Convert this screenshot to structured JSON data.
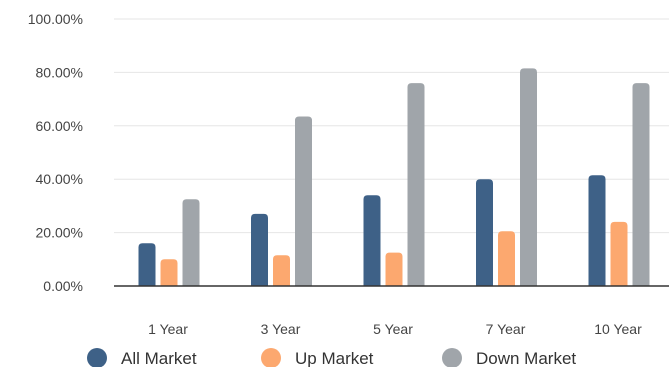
{
  "chart_data": {
    "type": "bar",
    "categories": [
      "1 Year",
      "3 Year",
      "5 Year",
      "7 Year",
      "10 Year"
    ],
    "series": [
      {
        "name": "All Market",
        "color": "#3e6187",
        "values": [
          16,
          27,
          34,
          40,
          41.5
        ]
      },
      {
        "name": "Up Market",
        "color": "#fca86f",
        "values": [
          10,
          11.5,
          12.5,
          20.5,
          24
        ]
      },
      {
        "name": "Down Market",
        "color": "#a0a5aa",
        "values": [
          32.5,
          63.5,
          76,
          81.5,
          76
        ]
      }
    ],
    "y_ticks": [
      "0.00%",
      "20.00%",
      "40.00%",
      "60.00%",
      "80.00%",
      "100.00%"
    ],
    "ylim": [
      0,
      100
    ],
    "grid": true,
    "legend_position": "bottom",
    "title": "",
    "xlabel": "",
    "ylabel": ""
  }
}
